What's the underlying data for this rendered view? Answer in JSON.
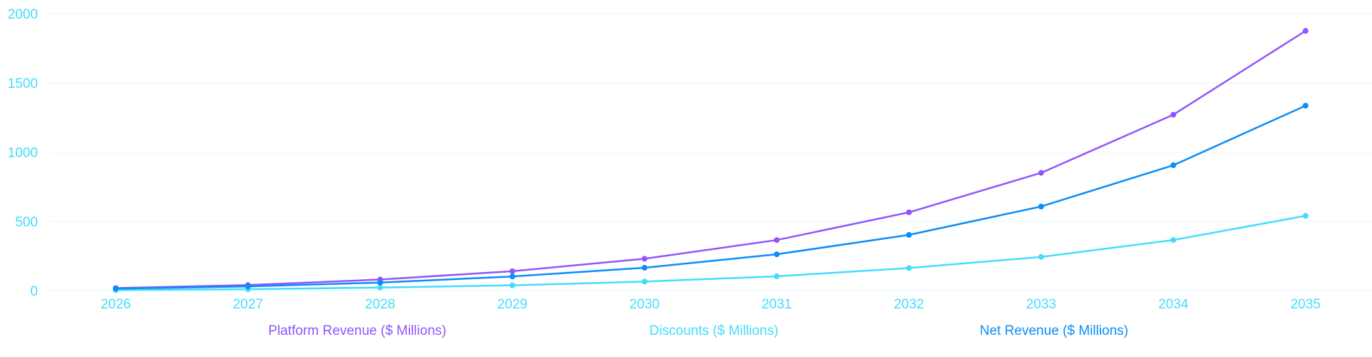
{
  "chart_data": {
    "type": "line",
    "title": "",
    "xlabel": "",
    "ylabel": "",
    "x": [
      "2026",
      "2027",
      "2028",
      "2029",
      "2030",
      "2031",
      "2032",
      "2033",
      "2034",
      "2035"
    ],
    "ylim": [
      0,
      2000
    ],
    "yticks": [
      "0",
      "500",
      "1000",
      "1500",
      "2000"
    ],
    "ytick_values": [
      0,
      500,
      1000,
      1500,
      2000
    ],
    "grid": true,
    "legend_placement": "bottom",
    "series": [
      {
        "name": "Platform Revenue ($ Millions)",
        "color": "#9155fd",
        "values": [
          18,
          40,
          80,
          140,
          230,
          365,
          565,
          850,
          1270,
          1875
        ]
      },
      {
        "name": "Discounts ($ Millions)",
        "color": "#45dcfc",
        "values": [
          4,
          10,
          22,
          38,
          65,
          103,
          163,
          243,
          365,
          540
        ]
      },
      {
        "name": "Net Revenue ($ Millions)",
        "color": "#0a8df7",
        "values": [
          14,
          30,
          58,
          102,
          165,
          262,
          402,
          607,
          905,
          1335
        ]
      }
    ]
  },
  "colors": {
    "axis_text": "#45dcfc",
    "grid": "#eafbff"
  }
}
